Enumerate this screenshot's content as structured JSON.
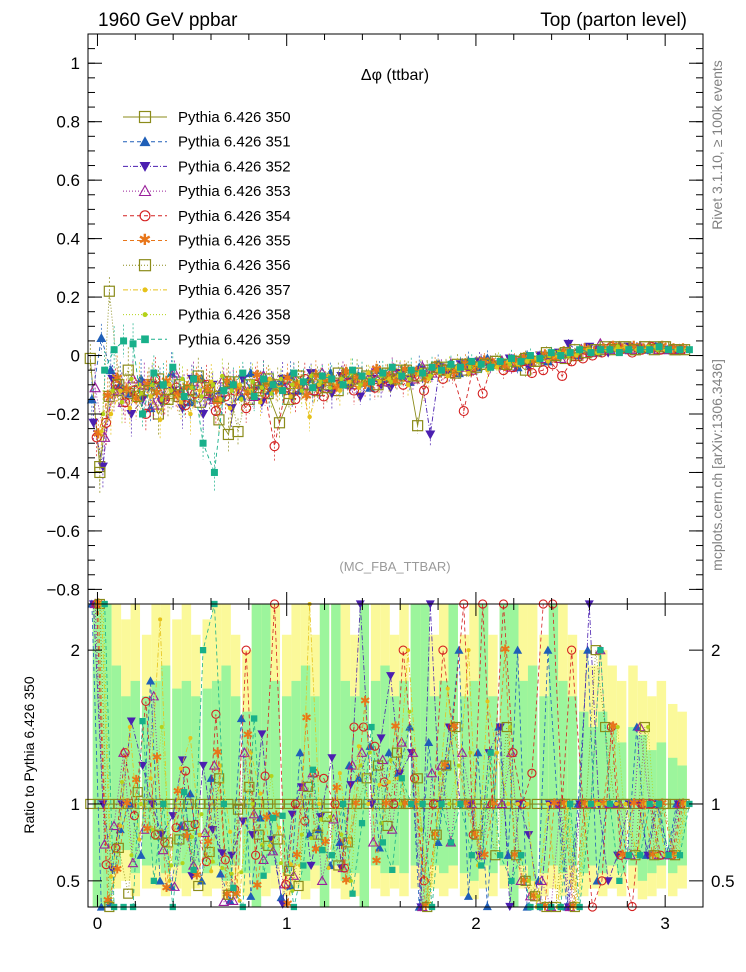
{
  "header": {
    "left": "1960 GeV ppbar",
    "right": "Top (parton level)"
  },
  "side_labels": {
    "rivet": "Rivet 3.1.10, ≥ 100k events",
    "mcplots": "mcplots.cern.ch [arXiv:1306.3436]"
  },
  "colors": {
    "band_green": "#9cf59c",
    "band_yellow": "#fbf99a",
    "axis": "#000000"
  },
  "chart_data": [
    {
      "type": "line",
      "title": "Δφ (ttbar)",
      "watermark": "(MC_FBA_TTBAR)",
      "xlim": [
        -0.05,
        3.2
      ],
      "ylim": [
        -0.85,
        1.1
      ],
      "yticks": [
        "−0.8",
        "−0.6",
        "−0.4",
        "−0.2",
        "0",
        "0.2",
        "0.4",
        "0.6",
        "0.8",
        "1"
      ],
      "ytick_values": [
        -0.8,
        -0.6,
        -0.4,
        -0.2,
        0,
        0.2,
        0.4,
        0.6,
        0.8,
        1
      ],
      "legend_position": "top-left",
      "x": [
        0.0,
        0.05,
        0.1,
        0.15,
        0.2,
        0.26,
        0.31,
        0.36,
        0.42,
        0.47,
        0.52,
        0.58,
        0.63,
        0.68,
        0.73,
        0.79,
        0.84,
        0.89,
        0.94,
        1.0,
        1.05,
        1.1,
        1.15,
        1.2,
        1.26,
        1.31,
        1.36,
        1.41,
        1.47,
        1.52,
        1.57,
        1.62,
        1.68,
        1.73,
        1.78,
        1.83,
        1.88,
        1.94,
        1.99,
        2.04,
        2.09,
        2.15,
        2.2,
        2.25,
        2.3,
        2.36,
        2.41,
        2.46,
        2.51,
        2.57,
        2.62,
        2.67,
        2.72,
        2.77,
        2.83,
        2.88,
        2.93,
        2.98,
        3.04,
        3.09
      ],
      "series": [
        {
          "name": "Pythia 6.426 350",
          "color": "#8b8b1a",
          "marker": "open-square",
          "dash": "solid",
          "values": [
            -0.01,
            -0.38,
            -0.14,
            -0.12,
            -0.13,
            -0.12,
            -0.1,
            -0.2,
            -0.13,
            -0.14,
            -0.15,
            -0.16,
            -0.12,
            -0.22,
            -0.27,
            -0.09,
            -0.15,
            -0.11,
            -0.13,
            -0.23,
            -0.15,
            -0.09,
            -0.1,
            -0.12,
            -0.1,
            -0.12,
            -0.08,
            -0.06,
            -0.08,
            -0.07,
            -0.06,
            -0.05,
            -0.06,
            -0.24,
            -0.05,
            -0.04,
            -0.04,
            -0.03,
            -0.05,
            -0.03,
            -0.03,
            -0.02,
            -0.03,
            -0.02,
            -0.05,
            -0.02,
            -0.01,
            0.0,
            -0.01,
            0.0,
            0.01,
            0.02,
            0.02,
            0.03,
            0.03,
            0.02,
            0.03,
            0.03,
            0.03,
            0.02
          ]
        },
        {
          "name": "Pythia 6.426 351",
          "color": "#1f5fb8",
          "marker": "filled-triangle-up",
          "dash": "dashed",
          "values": [
            -0.15,
            0.06,
            -0.05,
            -0.1,
            -0.13,
            -0.08,
            -0.18,
            -0.1,
            -0.06,
            -0.12,
            -0.16,
            -0.08,
            -0.14,
            -0.12,
            -0.1,
            -0.14,
            -0.06,
            -0.1,
            -0.12,
            -0.09,
            -0.07,
            -0.12,
            -0.08,
            -0.1,
            -0.06,
            -0.09,
            -0.1,
            -0.07,
            -0.11,
            -0.05,
            -0.08,
            -0.06,
            -0.09,
            -0.04,
            -0.07,
            -0.03,
            -0.05,
            -0.06,
            -0.02,
            -0.04,
            -0.01,
            -0.03,
            -0.02,
            -0.04,
            0.0,
            -0.01,
            -0.02,
            0.0,
            0.01,
            0.0,
            0.02,
            0.01,
            0.02,
            0.03,
            0.02,
            0.03,
            0.02,
            0.03,
            0.02,
            0.02
          ]
        },
        {
          "name": "Pythia 6.426 352",
          "color": "#4b1fb0",
          "marker": "filled-triangle-down",
          "dash": "dash-dot",
          "values": [
            -0.23,
            -0.38,
            -0.08,
            -0.12,
            -0.2,
            -0.15,
            -0.1,
            -0.16,
            -0.12,
            -0.18,
            -0.08,
            -0.2,
            -0.1,
            -0.15,
            -0.18,
            -0.08,
            -0.12,
            -0.16,
            -0.1,
            -0.08,
            -0.14,
            -0.1,
            -0.06,
            -0.11,
            -0.13,
            -0.07,
            -0.09,
            -0.14,
            -0.08,
            -0.1,
            -0.11,
            -0.06,
            -0.08,
            -0.05,
            -0.27,
            -0.04,
            -0.06,
            -0.03,
            -0.05,
            -0.02,
            -0.04,
            -0.03,
            -0.01,
            -0.02,
            -0.04,
            0.0,
            -0.01,
            0.01,
            0.04,
            0.01,
            0.03,
            0.02,
            0.01,
            0.02,
            0.03,
            0.02,
            0.02,
            0.03,
            0.02,
            0.02
          ]
        },
        {
          "name": "Pythia 6.426 353",
          "color": "#9a209a",
          "marker": "open-triangle-up",
          "dash": "dotted",
          "values": [
            -0.11,
            -0.28,
            -0.12,
            -0.16,
            -0.08,
            -0.1,
            -0.17,
            -0.14,
            -0.06,
            -0.12,
            -0.09,
            -0.13,
            -0.15,
            -0.08,
            -0.1,
            -0.12,
            -0.14,
            -0.07,
            -0.09,
            -0.11,
            -0.08,
            -0.1,
            -0.12,
            -0.06,
            -0.09,
            -0.07,
            -0.1,
            -0.08,
            -0.06,
            -0.09,
            -0.05,
            -0.07,
            -0.08,
            -0.04,
            -0.06,
            -0.05,
            -0.03,
            -0.04,
            -0.05,
            -0.02,
            -0.03,
            -0.02,
            -0.04,
            -0.01,
            -0.02,
            -0.01,
            0.0,
            -0.01,
            0.01,
            0.02,
            0.01,
            0.04,
            0.02,
            0.03,
            0.02,
            0.03,
            0.03,
            0.02,
            0.02,
            0.02
          ]
        },
        {
          "name": "Pythia 6.426 354",
          "color": "#d42020",
          "marker": "open-circle",
          "dash": "dashed",
          "values": [
            -0.28,
            -0.23,
            -0.1,
            -0.16,
            -0.12,
            -0.2,
            -0.08,
            -0.15,
            -0.11,
            -0.17,
            -0.13,
            -0.1,
            -0.19,
            -0.14,
            -0.12,
            -0.18,
            -0.1,
            -0.13,
            -0.31,
            -0.11,
            -0.15,
            -0.08,
            -0.12,
            -0.14,
            -0.1,
            -0.07,
            -0.12,
            -0.09,
            -0.11,
            -0.08,
            -0.06,
            -0.1,
            -0.07,
            -0.12,
            -0.05,
            -0.08,
            -0.06,
            -0.19,
            -0.04,
            -0.13,
            -0.03,
            -0.05,
            -0.04,
            -0.02,
            -0.06,
            -0.05,
            -0.03,
            -0.07,
            -0.02,
            -0.01,
            0.0,
            0.01,
            0.03,
            0.02,
            0.01,
            0.02,
            0.03,
            0.02,
            0.02,
            0.02
          ]
        },
        {
          "name": "Pythia 6.426 355",
          "color": "#e8761a",
          "marker": "open-star",
          "dash": "dashed",
          "values": [
            -0.27,
            -0.14,
            -0.08,
            -0.12,
            -0.15,
            -0.1,
            -0.13,
            -0.09,
            -0.14,
            -0.11,
            -0.08,
            -0.12,
            -0.16,
            -0.09,
            -0.11,
            -0.13,
            -0.07,
            -0.1,
            -0.12,
            -0.08,
            -0.1,
            -0.14,
            -0.07,
            -0.09,
            -0.11,
            -0.06,
            -0.08,
            -0.1,
            -0.05,
            -0.07,
            -0.09,
            -0.05,
            -0.06,
            -0.08,
            -0.04,
            -0.05,
            -0.06,
            -0.03,
            -0.04,
            -0.02,
            -0.03,
            -0.04,
            -0.02,
            -0.01,
            -0.02,
            0.0,
            -0.01,
            0.01,
            0.0,
            0.02,
            0.01,
            0.02,
            0.03,
            0.02,
            0.03,
            0.02,
            0.02,
            0.03,
            0.02,
            0.02
          ]
        },
        {
          "name": "Pythia 6.426 356",
          "color": "#8b8b1a",
          "marker": "open-square",
          "dash": "dotted",
          "values": [
            -0.4,
            0.22,
            -0.1,
            -0.05,
            -0.14,
            -0.12,
            -0.08,
            -0.15,
            -0.1,
            -0.12,
            -0.07,
            -0.11,
            -0.14,
            -0.09,
            -0.26,
            -0.1,
            -0.12,
            -0.08,
            -0.1,
            -0.13,
            -0.07,
            -0.1,
            -0.08,
            -0.11,
            -0.06,
            -0.09,
            -0.08,
            -0.07,
            -0.1,
            -0.06,
            -0.08,
            -0.05,
            -0.07,
            -0.06,
            -0.04,
            -0.05,
            -0.06,
            -0.03,
            -0.04,
            -0.03,
            -0.02,
            -0.03,
            -0.02,
            -0.01,
            -0.02,
            0.01,
            0.0,
            0.01,
            0.02,
            0.01,
            0.02,
            0.03,
            0.02,
            0.03,
            0.02,
            0.03,
            0.02,
            0.03,
            0.02,
            0.02
          ]
        },
        {
          "name": "Pythia 6.426 357",
          "color": "#e6c21a",
          "marker": "small-dot",
          "dash": "dash-dot",
          "values": [
            -0.26,
            -0.2,
            -0.12,
            -0.18,
            -0.1,
            -0.14,
            -0.22,
            -0.1,
            -0.16,
            -0.2,
            -0.12,
            -0.09,
            -0.15,
            -0.18,
            -0.1,
            -0.12,
            -0.16,
            -0.08,
            -0.11,
            -0.14,
            -0.09,
            -0.21,
            -0.1,
            -0.07,
            -0.12,
            -0.09,
            -0.11,
            -0.06,
            -0.09,
            -0.08,
            -0.07,
            -0.1,
            -0.06,
            -0.08,
            -0.05,
            -0.07,
            -0.04,
            -0.06,
            -0.03,
            -0.05,
            -0.04,
            -0.02,
            -0.03,
            -0.02,
            -0.01,
            -0.02,
            0.0,
            0.01,
            0.0,
            0.02,
            0.01,
            0.02,
            0.02,
            0.03,
            0.02,
            0.02,
            0.03,
            0.02,
            0.02,
            0.02
          ]
        },
        {
          "name": "Pythia 6.426 358",
          "color": "#b4d21a",
          "marker": "small-dot",
          "dash": "dotted",
          "values": [
            -0.2,
            -0.12,
            -0.16,
            -0.08,
            -0.13,
            -0.1,
            -0.15,
            -0.12,
            -0.08,
            -0.11,
            -0.14,
            -0.1,
            -0.07,
            -0.12,
            -0.15,
            -0.09,
            -0.11,
            -0.13,
            -0.08,
            -0.1,
            -0.12,
            -0.07,
            -0.09,
            -0.11,
            -0.08,
            -0.06,
            -0.1,
            -0.08,
            -0.07,
            -0.09,
            -0.06,
            -0.08,
            -0.05,
            -0.07,
            -0.06,
            -0.04,
            -0.05,
            -0.04,
            -0.03,
            -0.04,
            -0.02,
            -0.03,
            -0.02,
            -0.01,
            -0.02,
            0.0,
            0.01,
            0.0,
            0.01,
            0.02,
            0.01,
            0.02,
            0.03,
            0.02,
            0.02,
            0.03,
            0.02,
            0.02,
            0.02,
            0.02
          ]
        },
        {
          "name": "Pythia 6.426 359",
          "color": "#18b08a",
          "marker": "filled-square",
          "dash": "dashed",
          "values": [
            -0.05,
            0.02,
            0.05,
            0.04,
            -0.2,
            -0.06,
            -0.1,
            -0.04,
            -0.14,
            -0.08,
            -0.3,
            -0.4,
            -0.12,
            -0.1,
            -0.06,
            -0.14,
            -0.08,
            -0.1,
            -0.12,
            -0.06,
            -0.09,
            -0.11,
            -0.07,
            -0.08,
            -0.1,
            -0.05,
            -0.07,
            -0.09,
            -0.06,
            -0.04,
            -0.07,
            -0.05,
            -0.06,
            -0.04,
            -0.05,
            -0.03,
            -0.04,
            -0.02,
            -0.03,
            -0.04,
            -0.02,
            -0.01,
            -0.02,
            0.0,
            -0.01,
            0.01,
            0.0,
            0.01,
            0.02,
            0.01,
            0.02,
            0.02,
            0.01,
            0.02,
            0.02,
            0.02,
            0.03,
            0.02,
            0.02,
            0.02
          ]
        }
      ]
    },
    {
      "type": "line",
      "title": "ratio",
      "ylabel": "Ratio to Pythia 6.426 350",
      "xlim": [
        -0.05,
        3.2
      ],
      "ylim": [
        0.33,
        2.3
      ],
      "xticks": [
        "0",
        "1",
        "2",
        "3"
      ],
      "xtick_values": [
        0,
        1,
        2,
        3
      ],
      "yticks": [
        "0.5",
        "1",
        "2"
      ],
      "ytick_values": [
        0.5,
        1,
        2
      ],
      "green_band_low": [
        0.33,
        0.33,
        0.6,
        0.7,
        0.55,
        0.6,
        0.6,
        0.55,
        0.6,
        0.55,
        0.6,
        0.55,
        0.6,
        0.5,
        0.6,
        0.55,
        0.33,
        0.55,
        0.6,
        0.55,
        0.6,
        0.5,
        0.6,
        0.33,
        0.6,
        0.5,
        0.55,
        0.33,
        0.6,
        0.55,
        0.6,
        0.55,
        0.6,
        0.33,
        0.6,
        0.55,
        0.6,
        0.55,
        0.5,
        0.6,
        0.55,
        0.6,
        0.33,
        0.6,
        0.5,
        0.55,
        0.6,
        0.55,
        0.6,
        0.55,
        0.6,
        0.55,
        0.6,
        0.55,
        0.6,
        0.5,
        0.55,
        0.6,
        0.55,
        0.6
      ],
      "green_band_high": [
        2.3,
        2.3,
        1.9,
        1.7,
        1.8,
        1.7,
        1.8,
        1.9,
        1.75,
        1.8,
        1.7,
        1.75,
        1.8,
        1.9,
        1.7,
        1.6,
        2.3,
        2.3,
        1.8,
        1.7,
        1.8,
        1.9,
        1.7,
        2.3,
        2.3,
        1.8,
        1.7,
        2.3,
        1.8,
        1.9,
        1.7,
        1.8,
        2.3,
        2.3,
        1.7,
        1.8,
        2.3,
        1.7,
        1.8,
        2.3,
        1.7,
        2.3,
        2.3,
        1.8,
        1.9,
        1.7,
        2.3,
        1.8,
        1.7,
        1.6,
        1.5,
        1.6,
        1.5,
        1.4,
        1.5,
        1.45,
        1.35,
        1.4,
        1.3,
        1.25
      ],
      "yellow_band_low": [
        0.33,
        0.33,
        0.45,
        0.5,
        0.4,
        0.45,
        0.45,
        0.4,
        0.45,
        0.4,
        0.45,
        0.4,
        0.45,
        0.38,
        0.45,
        0.4,
        0.33,
        0.4,
        0.45,
        0.4,
        0.45,
        0.38,
        0.45,
        0.33,
        0.45,
        0.38,
        0.4,
        0.33,
        0.45,
        0.4,
        0.45,
        0.4,
        0.45,
        0.33,
        0.45,
        0.4,
        0.45,
        0.4,
        0.38,
        0.45,
        0.4,
        0.45,
        0.33,
        0.45,
        0.38,
        0.4,
        0.45,
        0.4,
        0.45,
        0.4,
        0.45,
        0.4,
        0.45,
        0.4,
        0.45,
        0.38,
        0.4,
        0.45,
        0.4,
        0.45
      ],
      "yellow_band_high": [
        2.3,
        2.3,
        2.3,
        2.2,
        2.3,
        2.1,
        2.3,
        2.3,
        2.2,
        2.3,
        2.1,
        2.2,
        2.3,
        2.3,
        2.1,
        2.0,
        2.3,
        2.3,
        2.3,
        2.1,
        2.3,
        2.3,
        2.1,
        2.3,
        2.3,
        2.3,
        2.1,
        2.3,
        2.3,
        2.3,
        2.1,
        2.3,
        2.3,
        2.3,
        2.1,
        2.3,
        2.3,
        2.1,
        2.3,
        2.3,
        2.1,
        2.3,
        2.3,
        2.3,
        2.3,
        2.1,
        2.3,
        2.3,
        2.1,
        2.0,
        1.9,
        2.0,
        1.9,
        1.8,
        1.9,
        1.8,
        1.7,
        1.8,
        1.65,
        1.6
      ],
      "reference_line": 1
    }
  ]
}
